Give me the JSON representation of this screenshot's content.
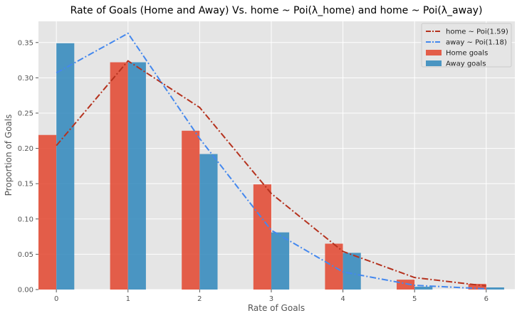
{
  "chart_data": {
    "type": "bar",
    "title": "Rate of Goals (Home and Away) Vs. home ~ Poi(λ_home) and home ~ Poi(λ_away)",
    "xlabel": "Rate of Goals",
    "ylabel": "Proportion of Goals",
    "categories": [
      0,
      1,
      2,
      3,
      4,
      5,
      6
    ],
    "xlim": [
      -0.25,
      6.4
    ],
    "ylim": [
      0,
      0.38
    ],
    "yticks": [
      "0.00",
      "0.05",
      "0.10",
      "0.15",
      "0.20",
      "0.25",
      "0.30",
      "0.35"
    ],
    "xticks": [
      "0",
      "1",
      "2",
      "3",
      "4",
      "5",
      "6"
    ],
    "grid": true,
    "legend_position": "top-right",
    "bar_series": [
      {
        "name": "Home goals",
        "color": "#E24A33",
        "values": [
          0.219,
          0.322,
          0.225,
          0.149,
          0.065,
          0.014,
          0.008
        ]
      },
      {
        "name": "Away goals",
        "color": "#348ABD",
        "values": [
          0.349,
          0.322,
          0.192,
          0.081,
          0.052,
          0.004,
          0.003
        ]
      }
    ],
    "line_series": [
      {
        "name": "home ~ Poi(1.59)",
        "color": "#B5321E",
        "style": "dashdot",
        "x": [
          0,
          1,
          2,
          3,
          4,
          5,
          6
        ],
        "values": [
          0.204,
          0.324,
          0.258,
          0.136,
          0.054,
          0.017,
          0.005
        ]
      },
      {
        "name": "away ~ Poi(1.18)",
        "color": "#4488EE",
        "style": "dashdot",
        "x": [
          0,
          1,
          2,
          3,
          4,
          5,
          6
        ],
        "values": [
          0.307,
          0.363,
          0.214,
          0.084,
          0.025,
          0.006,
          0.001
        ]
      }
    ]
  }
}
